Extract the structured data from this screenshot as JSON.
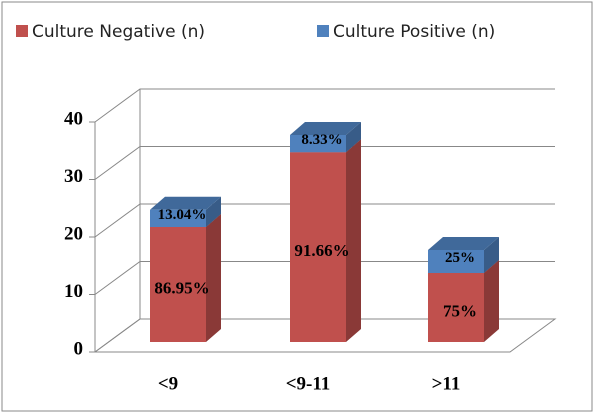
{
  "chart_data": {
    "type": "bar",
    "stacked": true,
    "three_d": true,
    "categories": [
      "<9",
      "<9-11",
      ">11"
    ],
    "series": [
      {
        "name": "Culture Negative (n)",
        "color": "#c0504d",
        "values": [
          20,
          33,
          12
        ],
        "value_labels": [
          "86.95%",
          "91.66%",
          "75%"
        ]
      },
      {
        "name": "Culture Positive (n)",
        "color": "#4f81bd",
        "values": [
          3,
          3,
          4
        ],
        "value_labels": [
          "13.04%",
          "8.33%",
          "25%"
        ]
      }
    ],
    "ylim": [
      0,
      40
    ],
    "yticks": [
      0,
      10,
      20,
      30,
      40
    ],
    "grid": true,
    "legend": "top"
  }
}
